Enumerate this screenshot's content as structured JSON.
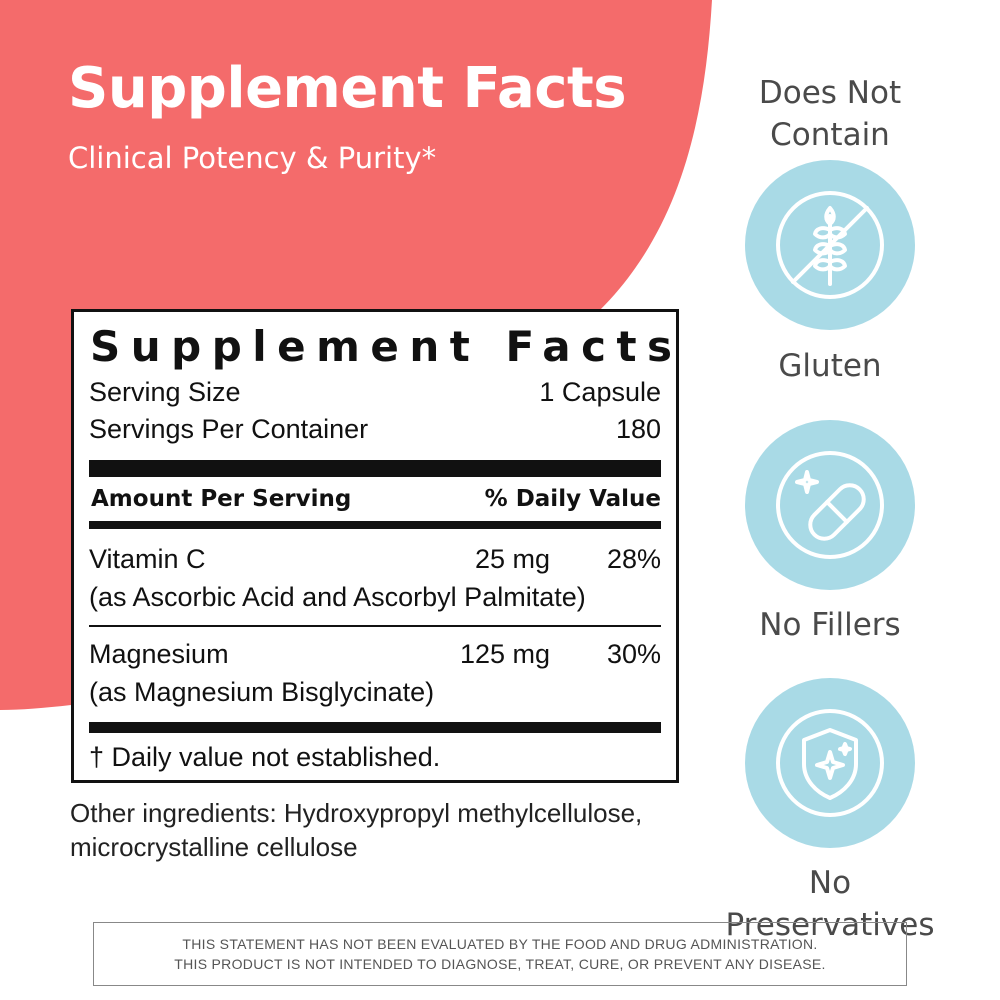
{
  "header": {
    "title": "Supplement Facts",
    "subtitle": "Clinical Potency & Purity*"
  },
  "facts_panel": {
    "title": "Supplement Facts",
    "serving_size_label": "Serving Size",
    "serving_size_value": "1 Capsule",
    "servings_per_container_label": "Servings Per Container",
    "servings_per_container_value": "180",
    "amount_header": "Amount Per Serving",
    "dv_header": "% Daily Value",
    "nutrients": [
      {
        "name": "Vitamin C",
        "amount": "25 mg",
        "dv": "28%",
        "source": "(as Ascorbic Acid and Ascorbyl Palmitate)"
      },
      {
        "name": "Magnesium",
        "amount": "125 mg",
        "dv": "30%",
        "source": "(as Magnesium Bisglycinate)"
      }
    ],
    "footnote": "† Daily value not established."
  },
  "other_ingredients": {
    "line1": "Other ingredients: Hydroxypropyl methylcellulose,",
    "line2": "microcrystalline cellulose"
  },
  "free_from": {
    "heading_line1": "Does Not",
    "heading_line2": "Contain",
    "items": [
      {
        "label": "Gluten",
        "icon": "no-gluten-icon"
      },
      {
        "label": "No Fillers",
        "icon": "capsule-icon"
      },
      {
        "label": "No Preservatives",
        "icon": "shield-sparkle-icon"
      }
    ]
  },
  "disclaimer": {
    "line1": "THIS STATEMENT HAS NOT BEEN EVALUATED BY THE FOOD AND DRUG ADMINISTRATION.",
    "line2": "THIS PRODUCT IS NOT INTENDED TO DIAGNOSE, TREAT, CURE, OR PREVENT ANY DISEASE."
  },
  "colors": {
    "accent": "#f46b6b",
    "badge": "#a9dae6",
    "text": "#1a1a1a"
  }
}
